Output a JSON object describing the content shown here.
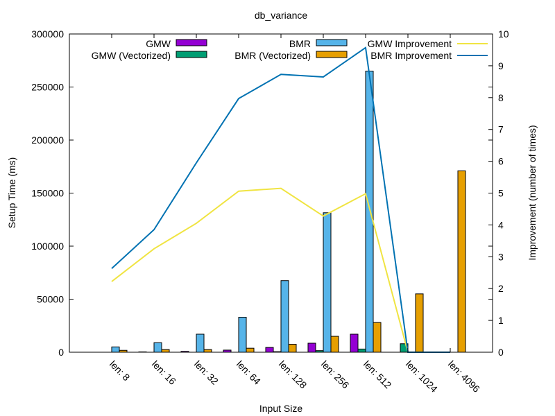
{
  "chart_data": {
    "type": "bar",
    "title": "db_variance",
    "xlabel": "Input Size",
    "ylabel": "Setup Time (ms)",
    "y2label": "Improvement (number of times)",
    "ylim": [
      0,
      300000
    ],
    "y2lim": [
      0,
      10
    ],
    "yticks": [
      "0",
      "50000",
      "100000",
      "150000",
      "200000",
      "250000",
      "300000"
    ],
    "y2ticks": [
      "0",
      "1",
      "2",
      "3",
      "4",
      "5",
      "6",
      "7",
      "8",
      "9",
      "10"
    ],
    "categories": [
      "len: 8",
      "len: 16",
      "len: 32",
      "len: 64",
      "len: 128",
      "len: 256",
      "len: 512",
      "len: 1024",
      "len: 4096"
    ],
    "legend_position": "top",
    "grid": false,
    "series": [
      {
        "name": "GMW",
        "kind": "bar",
        "axis": "y",
        "color": "#9400d3",
        "values": [
          0,
          300,
          800,
          2000,
          4500,
          8500,
          17000,
          0,
          0
        ]
      },
      {
        "name": "GMW (Vectorized)",
        "kind": "bar",
        "axis": "y",
        "color": "#009e73",
        "values": [
          0,
          0,
          0,
          0,
          500,
          1500,
          3000,
          8000,
          0
        ]
      },
      {
        "name": "BMR",
        "kind": "bar",
        "axis": "y",
        "color": "#56b4e9",
        "values": [
          5000,
          9000,
          17000,
          33000,
          67500,
          131500,
          265000,
          0,
          0
        ]
      },
      {
        "name": "BMR (Vectorized)",
        "kind": "bar",
        "axis": "y",
        "color": "#e69f00",
        "values": [
          1800,
          2500,
          2500,
          3800,
          7500,
          15000,
          28000,
          55000,
          171000
        ]
      },
      {
        "name": "GMW Improvement",
        "kind": "line",
        "axis": "y2",
        "color": "#f0e442",
        "values": [
          2.22,
          3.25,
          4.05,
          5.06,
          5.15,
          4.28,
          4.98,
          0,
          0
        ]
      },
      {
        "name": "BMR Improvement",
        "kind": "line",
        "axis": "y2",
        "color": "#0072b2",
        "values": [
          2.63,
          3.85,
          5.95,
          7.97,
          8.73,
          8.65,
          9.57,
          0,
          0
        ]
      }
    ]
  }
}
